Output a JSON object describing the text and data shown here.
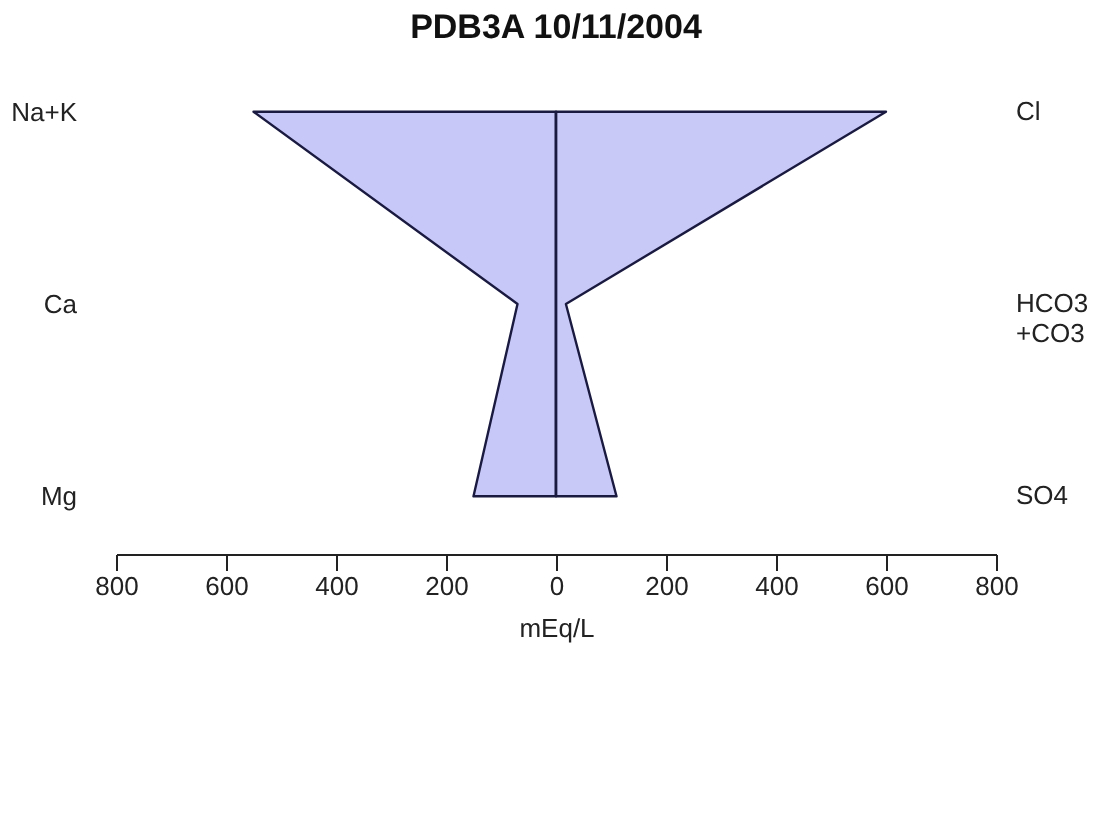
{
  "chart_data": {
    "type": "area",
    "title": "PDB3A 10/11/2004",
    "xlabel": "mEq/L",
    "orientation": "horizontal",
    "categories": [
      "Na+K",
      "Ca",
      "Mg"
    ],
    "y2_categories": [
      "Cl",
      "HCO3\n+CO3",
      "SO4"
    ],
    "series": [
      {
        "color": "#c8c8f8",
        "values": [
          -550,
          -70,
          -150
        ]
      },
      {
        "color": "#c9c9f7",
        "values": [
          600,
          18,
          110
        ]
      }
    ],
    "xlim": [
      -800,
      800
    ],
    "xticks": [
      {
        "value": -800,
        "label": "800"
      },
      {
        "value": -600,
        "label": "600"
      },
      {
        "value": -400,
        "label": "400"
      },
      {
        "value": -200,
        "label": "200"
      },
      0,
      200,
      400,
      600,
      800
    ],
    "ref_lines": [
      {
        "axis": "x",
        "value": 0,
        "color": "#1a1a40"
      }
    ]
  }
}
